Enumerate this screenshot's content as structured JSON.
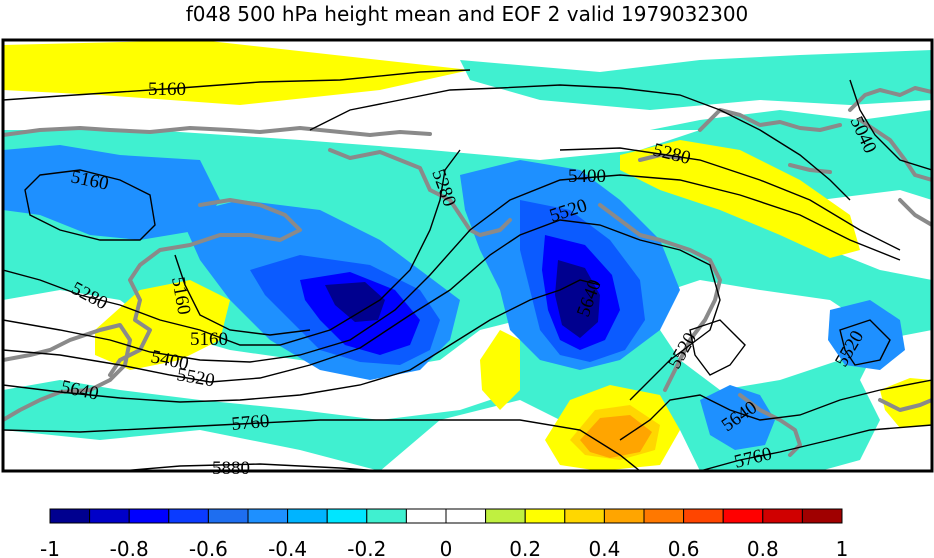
{
  "title": "f048 500 hPa height mean and EOF 2 valid 1979032300",
  "contour_labels": [
    "5160",
    "5160",
    "5160",
    "5160",
    "5280",
    "5280",
    "5280",
    "5400",
    "5400",
    "5520",
    "5520",
    "5520",
    "5520",
    "5640",
    "5640",
    "5640",
    "5760",
    "5760",
    "5880",
    "5040"
  ],
  "colorbar": {
    "ticks": [
      "-1",
      "-0.8",
      "-0.6",
      "-0.4",
      "-0.2",
      "0",
      "0.2",
      "0.4",
      "0.6",
      "0.8",
      "1"
    ],
    "colors": [
      "#00008f",
      "#0000c8",
      "#0000ff",
      "#0b3bff",
      "#1e6ef0",
      "#1e90ff",
      "#00b4ff",
      "#00e6ff",
      "#40f0d0",
      "#ffffff",
      "#ffffff",
      "#c0f040",
      "#ffff00",
      "#ffd700",
      "#ffa500",
      "#ff7800",
      "#ff4500",
      "#ff0000",
      "#d00000",
      "#a00000"
    ]
  },
  "fill_colors": {
    "cyan": "#40f0d0",
    "sky": "#1e90ff",
    "mid_blue": "#0b5bff",
    "blue": "#0000ff",
    "navy": "#00008f",
    "yellow": "#ffff00",
    "gold": "#ffd700",
    "orange": "#ffa500",
    "coast": "#8a8a8a"
  }
}
